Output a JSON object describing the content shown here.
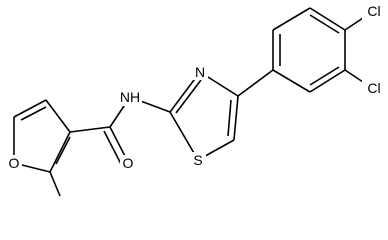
{
  "atoms": {
    "furan_oxygen": "O",
    "carbonyl_oxygen": "O",
    "amide_nitrogen": "NH",
    "thiazole_nitrogen": "N",
    "thiazole_sulfur": "S",
    "chlorine_1": "Cl",
    "chlorine_2": "Cl"
  }
}
